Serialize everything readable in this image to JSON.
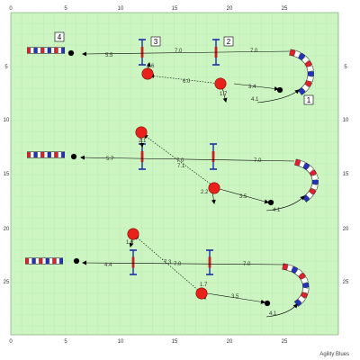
{
  "footer_text": "Agility Blues",
  "colors": {
    "field": "#ccf5c2",
    "grid": "#b8e4ae",
    "ball": "#e8221a",
    "dot": "#000000",
    "tunnel_red": "#e0202a",
    "tunnel_blue": "#2233bb",
    "tunnel_white": "#ffffff",
    "pole_blue": "#1a2fa8",
    "pole_red": "#c82020"
  },
  "axes": {
    "x_ticks": [
      "0",
      "5",
      "10",
      "15",
      "20",
      "25"
    ],
    "y_ticks": [
      "5",
      "10",
      "15",
      "20",
      "25"
    ]
  },
  "obstacles": {
    "number_boxes": [
      {
        "id": "1",
        "label": "1"
      },
      {
        "id": "2",
        "label": "2"
      },
      {
        "id": "3",
        "label": "3"
      },
      {
        "id": "4",
        "label": "4"
      }
    ]
  },
  "panels": [
    {
      "distances": {
        "d1": "4.1",
        "d2": "3.4",
        "d3": "1.7",
        "d4": "6.0",
        "d5": "1.6",
        "d6": "7.0",
        "d7": "7.0",
        "d8": "5.5"
      }
    },
    {
      "distances": {
        "d1": "4.1",
        "d2": "3.5",
        "d3": "2.2",
        "d4": "7.1",
        "d5": "2.1",
        "d6": "7.0",
        "d7": "7.0",
        "d8": "5.7"
      }
    },
    {
      "distances": {
        "d1": "4.1",
        "d2": "3.5",
        "d3": "1.7",
        "d4": "7.3",
        "d5": "1.6",
        "d6": "7.0",
        "d7": "7.0",
        "d8": "4.4"
      }
    }
  ]
}
